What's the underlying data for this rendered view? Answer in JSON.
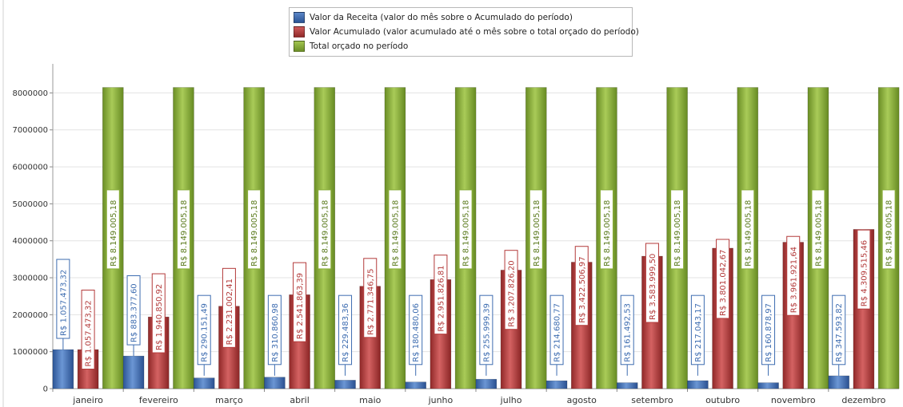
{
  "chart_data": {
    "type": "bar",
    "categories": [
      "janeiro",
      "fevereiro",
      "março",
      "abril",
      "maio",
      "junho",
      "julho",
      "agosto",
      "setembro",
      "outubro",
      "novembro",
      "dezembro"
    ],
    "series": [
      {
        "name": "Valor da Receita (valor do mês sobre o Acumulado do período)",
        "color": "#3d6cb0",
        "values": [
          1057473.32,
          883377.6,
          290151.49,
          310860.98,
          229483.36,
          180480.06,
          255999.39,
          214680.77,
          161492.53,
          217043.17,
          160878.97,
          347593.82
        ],
        "labels": [
          "R$ 1.057.473,32",
          "R$ 883.377,60",
          "R$ 290.151,49",
          "R$ 310.860,98",
          "R$ 229.483,36",
          "R$ 180.480,06",
          "R$ 255.999,39",
          "R$ 214.680,77",
          "R$ 161.492,53",
          "R$ 217.043,17",
          "R$ 160.878,97",
          "R$ 347.593,82"
        ]
      },
      {
        "name": "Valor Acumulado (valor acumulado até o mês sobre o total orçado do período)",
        "color": "#b33a3a",
        "values": [
          1057473.32,
          1940850.92,
          2231002.41,
          2541863.39,
          2771346.75,
          2951826.81,
          3207826.2,
          3422506.97,
          3583999.5,
          3801042.67,
          3961921.64,
          4309515.46
        ],
        "labels": [
          "R$ 1.057.473,32",
          "R$ 1.940.850,92",
          "R$ 2.231.002,41",
          "R$ 2.541.863,39",
          "R$ 2.771.346,75",
          "R$ 2.951.826,81",
          "R$ 3.207.826,20",
          "R$ 3.422.506,97",
          "R$ 3.583.999,50",
          "R$ 3.801.042,67",
          "R$ 3.961.921,64",
          "R$ 4.309.515,46"
        ]
      },
      {
        "name": "Total orçado no período",
        "color": "#88ad38",
        "values": [
          8149005.18,
          8149005.18,
          8149005.18,
          8149005.18,
          8149005.18,
          8149005.18,
          8149005.18,
          8149005.18,
          8149005.18,
          8149005.18,
          8149005.18,
          8149005.18
        ],
        "labels": [
          "R$ 8.149.005,18",
          "R$ 8.149.005,18",
          "R$ 8.149.005,18",
          "R$ 8.149.005,18",
          "R$ 8.149.005,18",
          "R$ 8.149.005,18",
          "R$ 8.149.005,18",
          "R$ 8.149.005,18",
          "R$ 8.149.005,18",
          "R$ 8.149.005,18",
          "R$ 8.149.005,18",
          "R$ 8.149.005,18"
        ]
      }
    ],
    "y_ticks": [
      "0",
      "1000000",
      "2000000",
      "3000000",
      "4000000",
      "5000000",
      "6000000",
      "7000000",
      "8000000"
    ],
    "ylim": [
      0,
      8700000
    ],
    "grid": true,
    "legend_position": "top-center",
    "title": "",
    "xlabel": "",
    "ylabel": ""
  }
}
